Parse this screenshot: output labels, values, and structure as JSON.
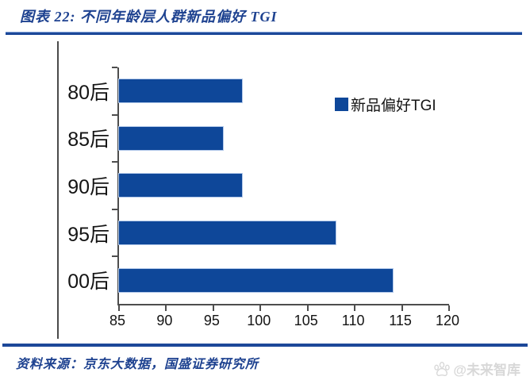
{
  "header": {
    "title": "图表 22:  不同年龄层人群新品偏好 TGI"
  },
  "chart_data": {
    "type": "bar",
    "orientation": "horizontal",
    "title": "不同年龄层人群新品偏好 TGI",
    "categories": [
      "80后",
      "85后",
      "90后",
      "95后",
      "00后"
    ],
    "series": [
      {
        "name": "新品偏好TGI",
        "values": [
          98,
          96,
          98,
          108,
          114
        ]
      }
    ],
    "xlim": [
      85,
      120
    ],
    "xticks": [
      85,
      90,
      95,
      100,
      105,
      110,
      115,
      120
    ],
    "bar_color": "#0E4799",
    "grid": false,
    "legend_position": "upper right"
  },
  "legend": {
    "label": "新品偏好TGI",
    "marker_color": "#0E4799"
  },
  "footer": {
    "source": "资料来源：京东大数据，国盛证券研究所",
    "watermark": "@未来智库"
  },
  "colors": {
    "accent_blue": "#1C4899",
    "title_text": "#1E4290",
    "axis": "#4d4d4d",
    "watermark": "#D8D8D8"
  }
}
